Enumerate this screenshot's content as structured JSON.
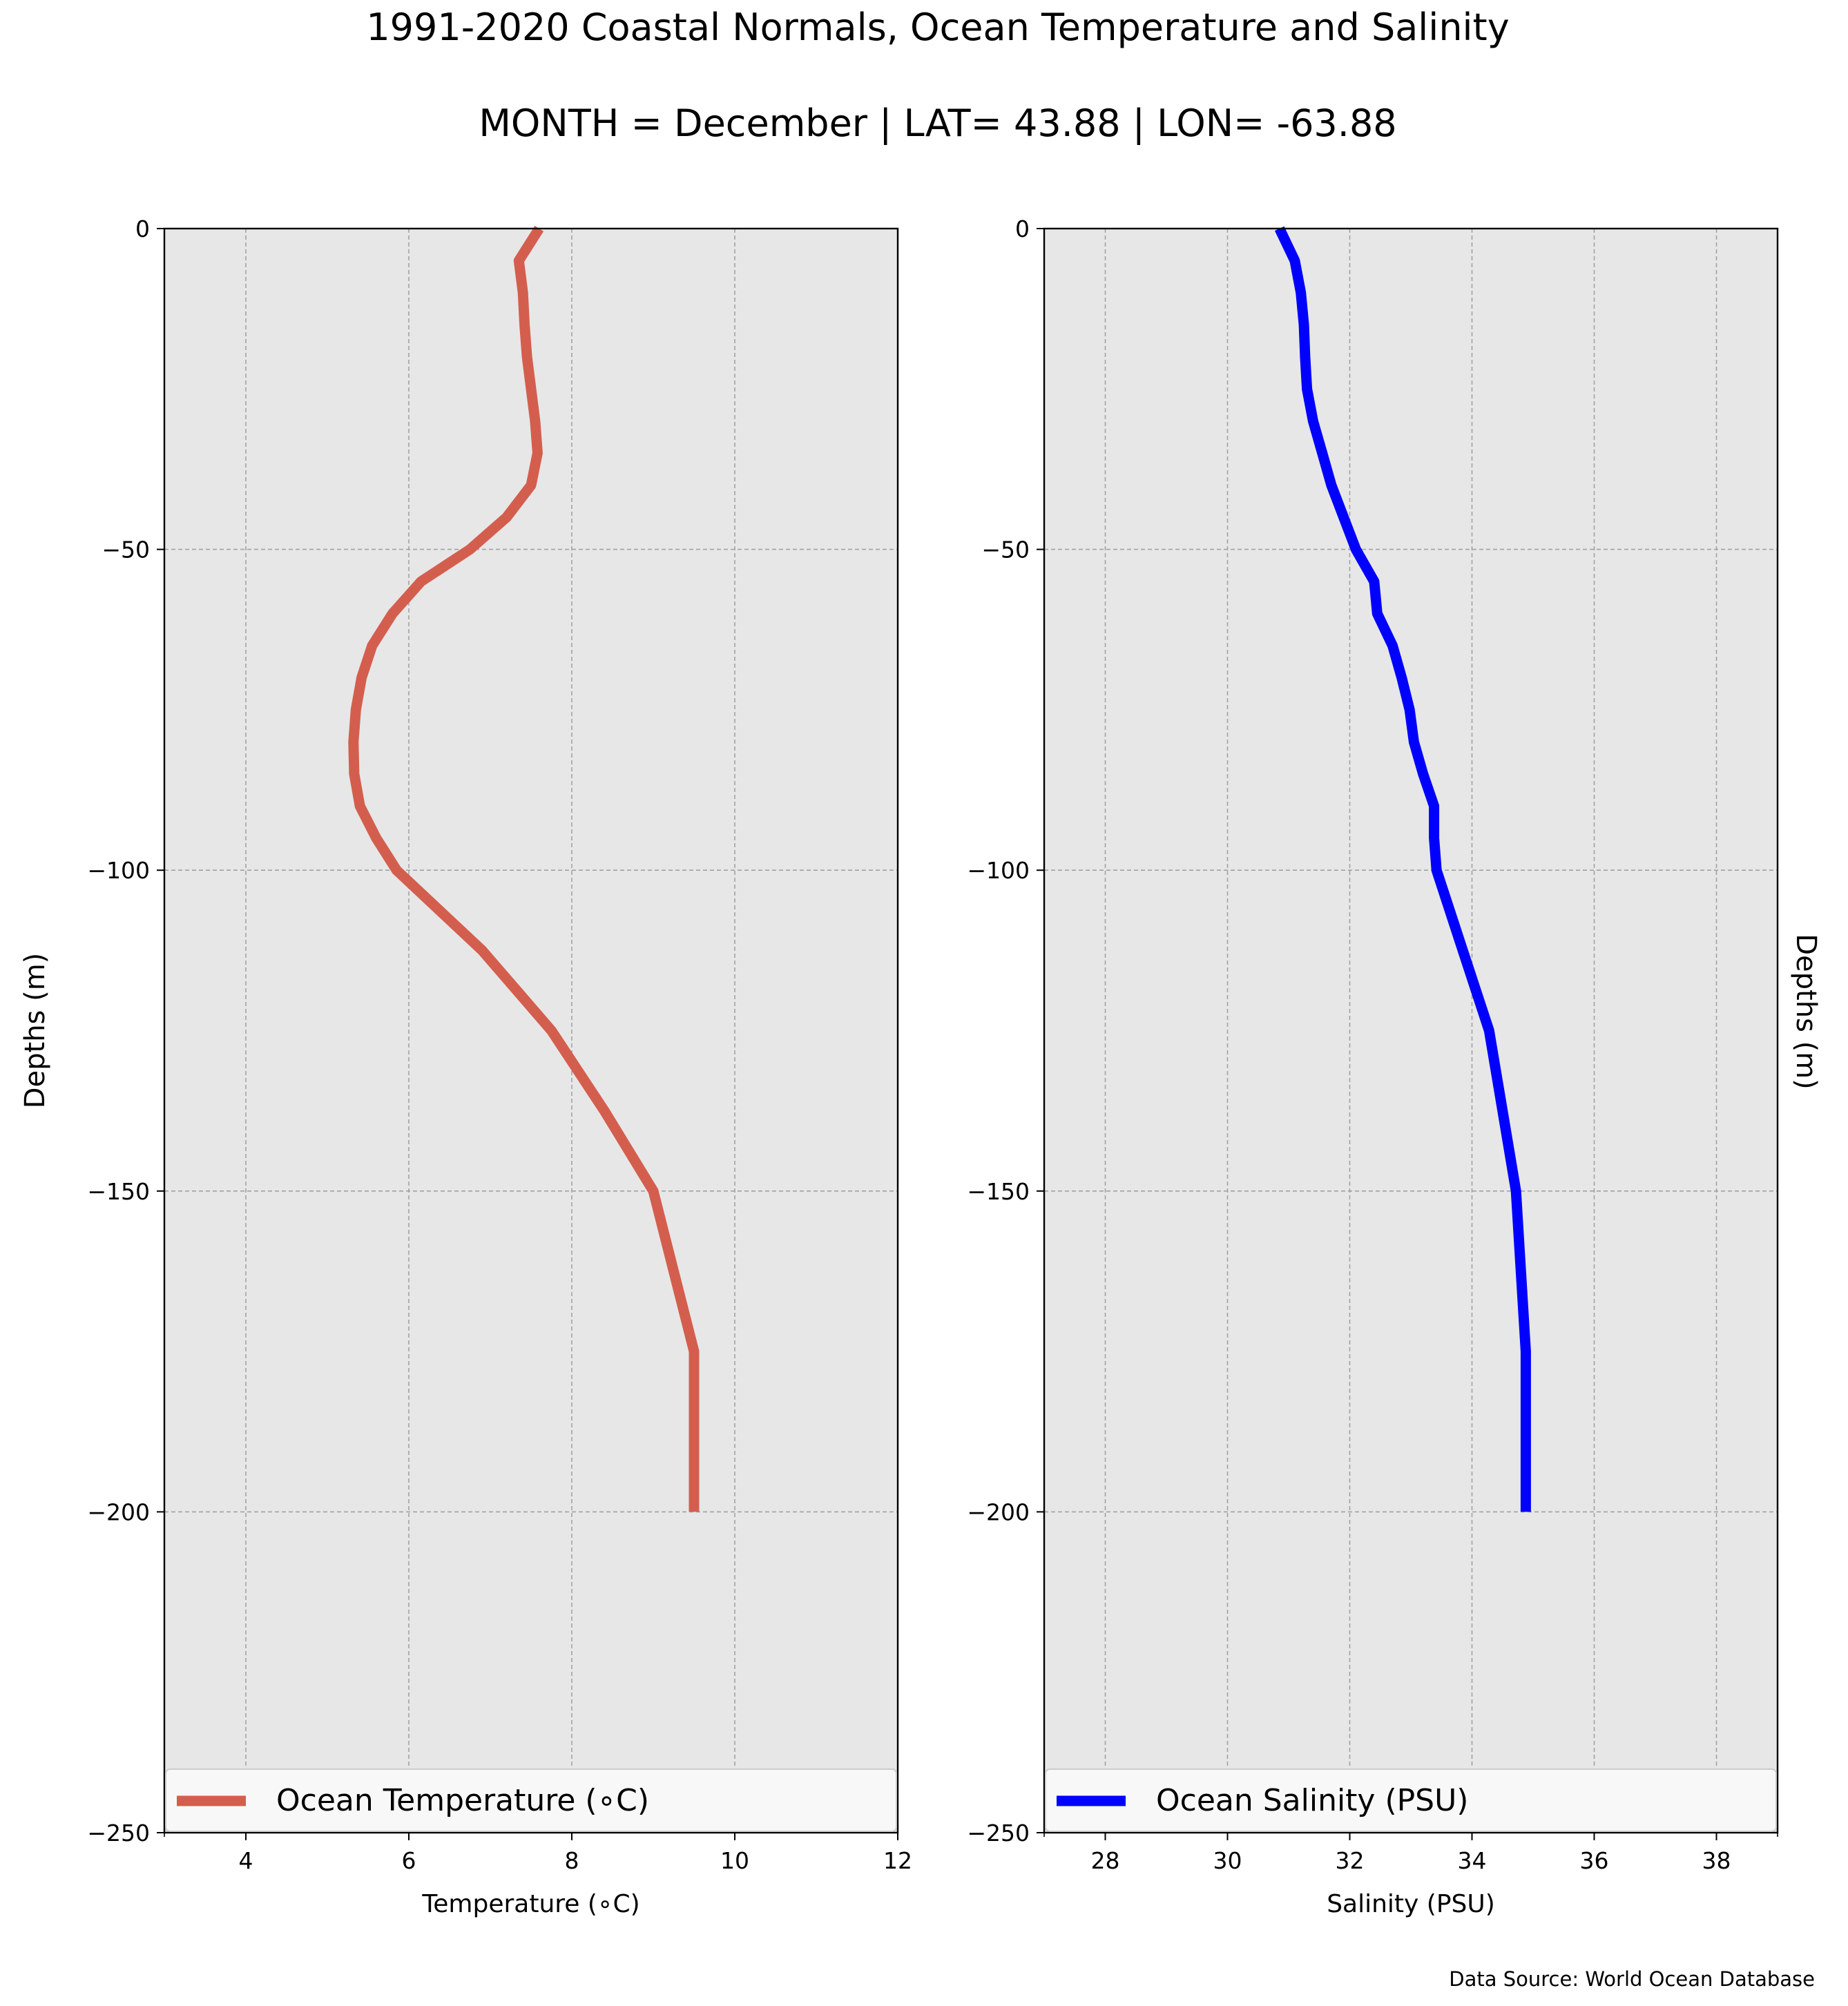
{
  "figure": {
    "title": "1991-2020 Coastal Normals, Ocean Temperature and Salinity",
    "subtitle": "MONTH = December | LAT= 43.88 | LON= -63.88",
    "source": "Data Source: World Ocean Database"
  },
  "colors": {
    "plot_background": "#e7e7e7",
    "grid": "#a2a2a2",
    "temperature_line": "#d45e4e",
    "salinity_line": "#0000ff",
    "legend_background": "#f8f8f8"
  },
  "chart_data": [
    {
      "type": "line",
      "xlabel": "Temperature ($^\\circ$C)",
      "xlabel_display": "Temperature (∘C)",
      "ylabel": "Depths (m)",
      "xlim": [
        3,
        12
      ],
      "ylim": [
        -250,
        0
      ],
      "xticks": [
        4,
        6,
        8,
        10,
        12
      ],
      "yticks": [
        0,
        -50,
        -100,
        -150,
        -200,
        -250
      ],
      "grid": true,
      "legend_position": "lower center",
      "series": [
        {
          "name": "Ocean Temperature (∘C)",
          "x": [
            7.6,
            7.35,
            7.4,
            7.42,
            7.45,
            7.5,
            7.55,
            7.58,
            7.5,
            7.2,
            6.75,
            6.15,
            5.8,
            5.55,
            5.42,
            5.35,
            5.32,
            5.33,
            5.4,
            5.6,
            5.85,
            6.9,
            7.75,
            8.4,
            9.0,
            9.25,
            9.5,
            9.5,
            9.5,
            9.5,
            9.5
          ],
          "y": [
            0,
            -5,
            -10,
            -15,
            -20,
            -25,
            -30,
            -35,
            -40,
            -45,
            -50,
            -55,
            -60,
            -65,
            -70,
            -75,
            -80,
            -85,
            -90,
            -95,
            -100,
            -112.5,
            -125,
            -137.5,
            -150,
            -162.5,
            -175,
            -187.5,
            -200,
            -200,
            -200
          ]
        }
      ]
    },
    {
      "type": "line",
      "xlabel": "Salinity (PSU)",
      "ylabel": "Depths (m)",
      "xlim": [
        27,
        39
      ],
      "ylim": [
        -250,
        0
      ],
      "xticks": [
        28,
        30,
        32,
        34,
        36,
        38
      ],
      "yticks": [
        0,
        -50,
        -100,
        -150,
        -200,
        -250
      ],
      "grid": true,
      "legend_position": "lower center",
      "series": [
        {
          "name": "Ocean Salinity (PSU)",
          "x": [
            30.85,
            31.1,
            31.2,
            31.25,
            31.27,
            31.3,
            31.4,
            31.55,
            31.7,
            31.9,
            32.1,
            32.4,
            32.45,
            32.7,
            32.85,
            32.98,
            33.05,
            33.2,
            33.38,
            33.38,
            33.42,
            33.85,
            34.28,
            34.5,
            34.72,
            34.8,
            34.88,
            34.88,
            34.88
          ],
          "y": [
            0,
            -5,
            -10,
            -15,
            -20,
            -25,
            -30,
            -35,
            -40,
            -45,
            -50,
            -55,
            -60,
            -65,
            -70,
            -75,
            -80,
            -85,
            -90,
            -95,
            -100,
            -112.5,
            -125,
            -137.5,
            -150,
            -162.5,
            -175,
            -187.5,
            -200
          ]
        }
      ]
    }
  ]
}
